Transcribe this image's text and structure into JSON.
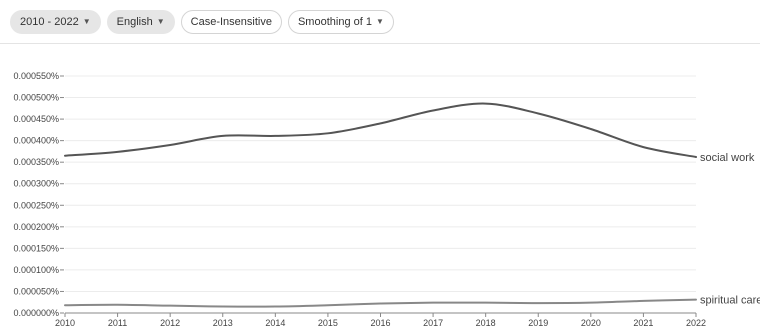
{
  "controls": {
    "year_range": "2010 - 2022",
    "language": "English",
    "case": "Case-Insensitive",
    "smoothing": "Smoothing of 1",
    "caret_icon": "chevron-down-icon"
  },
  "chart_data": {
    "type": "line",
    "x": [
      2010,
      2011,
      2012,
      2013,
      2014,
      2015,
      2016,
      2017,
      2018,
      2019,
      2020,
      2021,
      2022
    ],
    "x_tick_labels": [
      "2010",
      "2011",
      "2012",
      "2013",
      "2014",
      "2015",
      "2016",
      "2017",
      "2018",
      "2019",
      "2020",
      "2021",
      "2022"
    ],
    "ylim": [
      0,
      0.00055
    ],
    "y_tick_values": [
      0,
      5e-05,
      0.0001,
      0.00015,
      0.0002,
      0.00025,
      0.0003,
      0.00035,
      0.0004,
      0.00045,
      0.0005,
      0.00055
    ],
    "y_tick_labels": [
      "0.000000%",
      "0.000050%",
      "0.000100%",
      "0.000150%",
      "0.000200%",
      "0.000250%",
      "0.000300%",
      "0.000350%",
      "0.000400%",
      "0.000450%",
      "0.000500%",
      "0.000550%"
    ],
    "grid": true,
    "legend": "labels at line ends (right)",
    "series": [
      {
        "name": "social work",
        "color": "#555555",
        "values": [
          0.000365,
          0.000374,
          0.00039,
          0.000411,
          0.000411,
          0.000417,
          0.00044,
          0.00047,
          0.000486,
          0.000463,
          0.000427,
          0.000385,
          0.000362
        ]
      },
      {
        "name": "spiritual care",
        "color": "#888888",
        "values": [
          1.8e-05,
          1.9e-05,
          1.7e-05,
          1.5e-05,
          1.5e-05,
          1.8e-05,
          2.2e-05,
          2.4e-05,
          2.4e-05,
          2.3e-05,
          2.4e-05,
          2.8e-05,
          3.1e-05
        ]
      }
    ]
  }
}
